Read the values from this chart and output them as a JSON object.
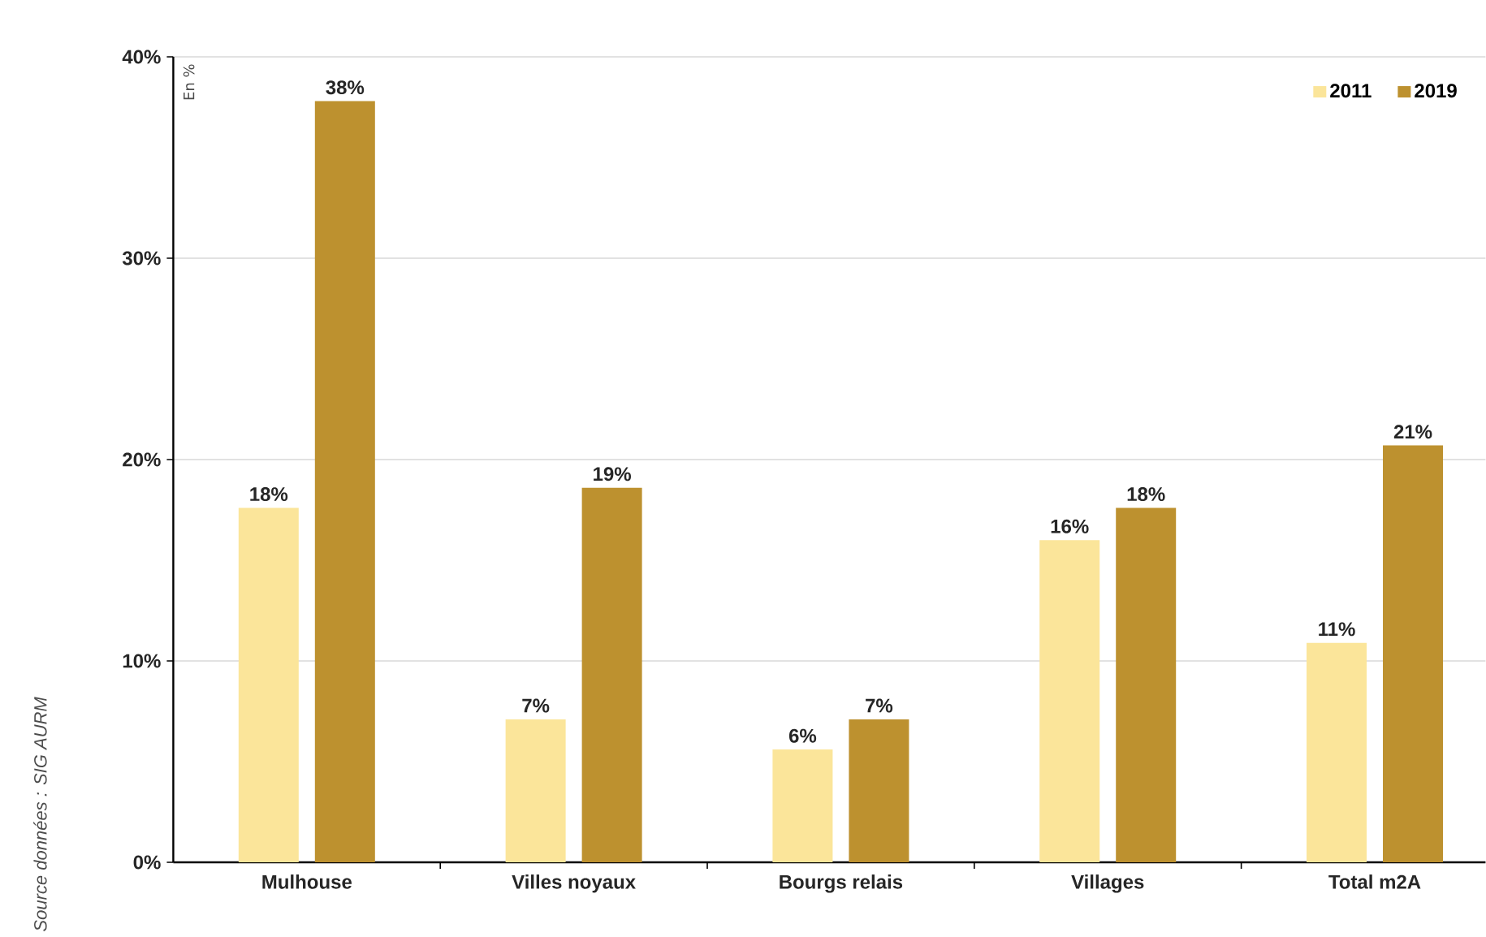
{
  "chart_data": {
    "type": "bar",
    "categories": [
      "Mulhouse",
      "Villes noyaux",
      "Bourgs relais",
      "Villages",
      "Total m2A"
    ],
    "series": [
      {
        "name": "2011",
        "color": "#fbe59a",
        "values": [
          17.6,
          7.1,
          5.6,
          16.0,
          10.9
        ],
        "value_labels": [
          "18%",
          "7%",
          "6%",
          "16%",
          "11%"
        ]
      },
      {
        "name": "2019",
        "color": "#bd912f",
        "values": [
          37.8,
          18.6,
          7.1,
          17.6,
          20.7
        ],
        "value_labels": [
          "38%",
          "19%",
          "7%",
          "18%",
          "21%"
        ]
      }
    ],
    "ylim": [
      0,
      40
    ],
    "yticks": [
      {
        "value": 0,
        "label": "0%"
      },
      {
        "value": 10,
        "label": "10%"
      },
      {
        "value": 20,
        "label": "20%"
      },
      {
        "value": 30,
        "label": "30%"
      },
      {
        "value": 40,
        "label": "40%"
      }
    ],
    "grid": "y",
    "legend": "top right",
    "annotations": [
      "En %",
      "Source données : SIG AURM"
    ]
  }
}
